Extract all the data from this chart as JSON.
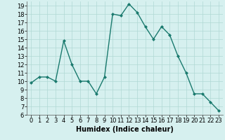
{
  "x": [
    0,
    1,
    2,
    3,
    4,
    5,
    6,
    7,
    8,
    9,
    10,
    11,
    12,
    13,
    14,
    15,
    16,
    17,
    18,
    19,
    20,
    21,
    22,
    23
  ],
  "y": [
    9.8,
    10.5,
    10.5,
    10.0,
    14.8,
    12.0,
    10.0,
    10.0,
    8.5,
    10.5,
    18.0,
    17.8,
    19.2,
    18.2,
    16.5,
    15.0,
    16.5,
    15.5,
    13.0,
    11.0,
    8.5,
    8.5,
    7.5,
    6.5
  ],
  "line_color": "#1a7a6e",
  "marker": "D",
  "marker_size": 2.0,
  "bg_color": "#d6f0ef",
  "grid_color": "#b0d8d4",
  "xlabel": "Humidex (Indice chaleur)",
  "xlabel_fontsize": 7,
  "ylim": [
    6,
    19.5
  ],
  "xlim": [
    -0.5,
    23.5
  ],
  "yticks": [
    6,
    7,
    8,
    9,
    10,
    11,
    12,
    13,
    14,
    15,
    16,
    17,
    18,
    19
  ],
  "xticks": [
    0,
    1,
    2,
    3,
    4,
    5,
    6,
    7,
    8,
    9,
    10,
    11,
    12,
    13,
    14,
    15,
    16,
    17,
    18,
    19,
    20,
    21,
    22,
    23
  ],
  "tick_fontsize": 6,
  "line_width": 1.0
}
